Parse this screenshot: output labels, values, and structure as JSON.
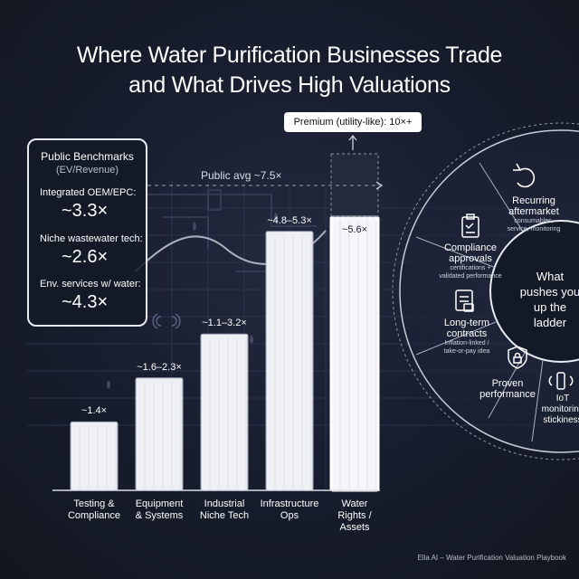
{
  "title": {
    "line1": "Where Water Purification Businesses Trade",
    "line2": "and What Drives High Valuations"
  },
  "benchmarks": {
    "title": "Public Benchmarks",
    "subtitle": "(EV/Revenue)",
    "items": [
      {
        "label": "Integrated OEM/EPC:",
        "value": "~3.3×"
      },
      {
        "label": "Niche wastewater tech:",
        "value": "~2.6×"
      },
      {
        "label": "Env. services w/ water:",
        "value": "~4.3×"
      }
    ]
  },
  "premium_label": "Premium (utility-like): 10×+",
  "public_avg_label": "Public avg ~7.5×",
  "chart_data": {
    "type": "bar",
    "categories": [
      "Testing & Compliance",
      "Equipment & Systems",
      "Industrial Niche Tech",
      "Infrastructure Ops",
      "Water Rights / Assets"
    ],
    "category_lines": [
      [
        "Testing &",
        "Compliance"
      ],
      [
        "Equipment",
        "& Systems"
      ],
      [
        "Industrial",
        "Niche Tech"
      ],
      [
        "Infrastructure",
        "Ops"
      ],
      [
        "Water",
        "Rights /",
        "Assets"
      ]
    ],
    "value_labels": [
      "~1.4×",
      "~1.6–2.3×",
      "~1.1–3.2×",
      "~4.8–5.3×",
      "~5.6×"
    ],
    "ranges": [
      [
        1.4,
        1.4
      ],
      [
        1.6,
        2.3
      ],
      [
        1.1,
        3.2
      ],
      [
        4.8,
        5.3
      ],
      [
        5.6,
        5.6
      ]
    ],
    "values": [
      1.4,
      2.3,
      3.2,
      5.3,
      5.6
    ],
    "reference_line": 7.5,
    "premium_threshold": 10,
    "highlight_index": 4
  },
  "drivers": {
    "center": [
      "What",
      "pushes you",
      "up the",
      "ladder"
    ],
    "items": [
      {
        "title": [
          "Recurring",
          "aftermarket"
        ],
        "sub": [
          "consumables,",
          "service, monitoring"
        ],
        "icon": "refresh-icon"
      },
      {
        "title": [
          "Compliance",
          "approvals"
        ],
        "sub": [
          "certifications +",
          "validated performance"
        ],
        "icon": "clipboard-check-icon"
      },
      {
        "title": [
          "Long-term",
          "contracts"
        ],
        "sub": [
          "Inflation-linked /",
          "take-or-pay idea"
        ],
        "icon": "contract-icon"
      },
      {
        "title": [
          "Proven",
          "performance"
        ],
        "sub": [],
        "icon": "shield-lock-icon"
      },
      {
        "title": [
          "IoT",
          "monitoring",
          "stickiness"
        ],
        "sub": [],
        "icon": "iot-device-icon"
      }
    ]
  },
  "footer": "Ella AI – Water Purification Valuation Playbook"
}
